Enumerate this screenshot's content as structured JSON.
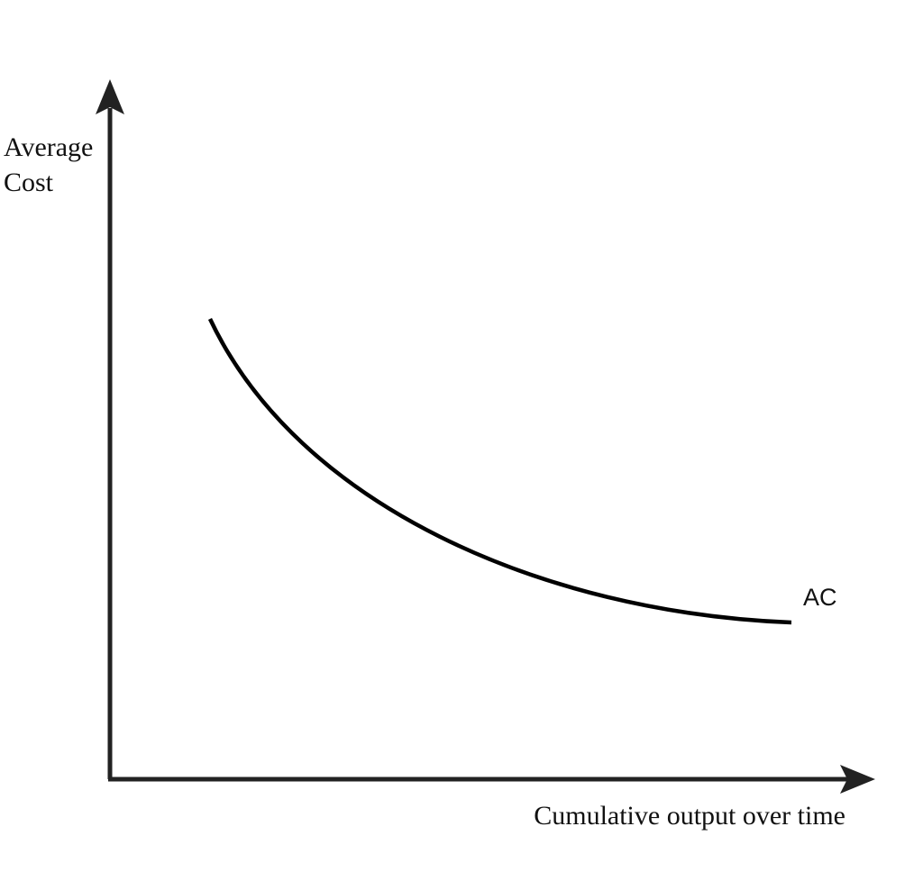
{
  "axes": {
    "y_label": [
      "Average",
      "Cost"
    ],
    "x_label": "Cumulative output over time"
  },
  "curve": {
    "label": "AC"
  }
}
